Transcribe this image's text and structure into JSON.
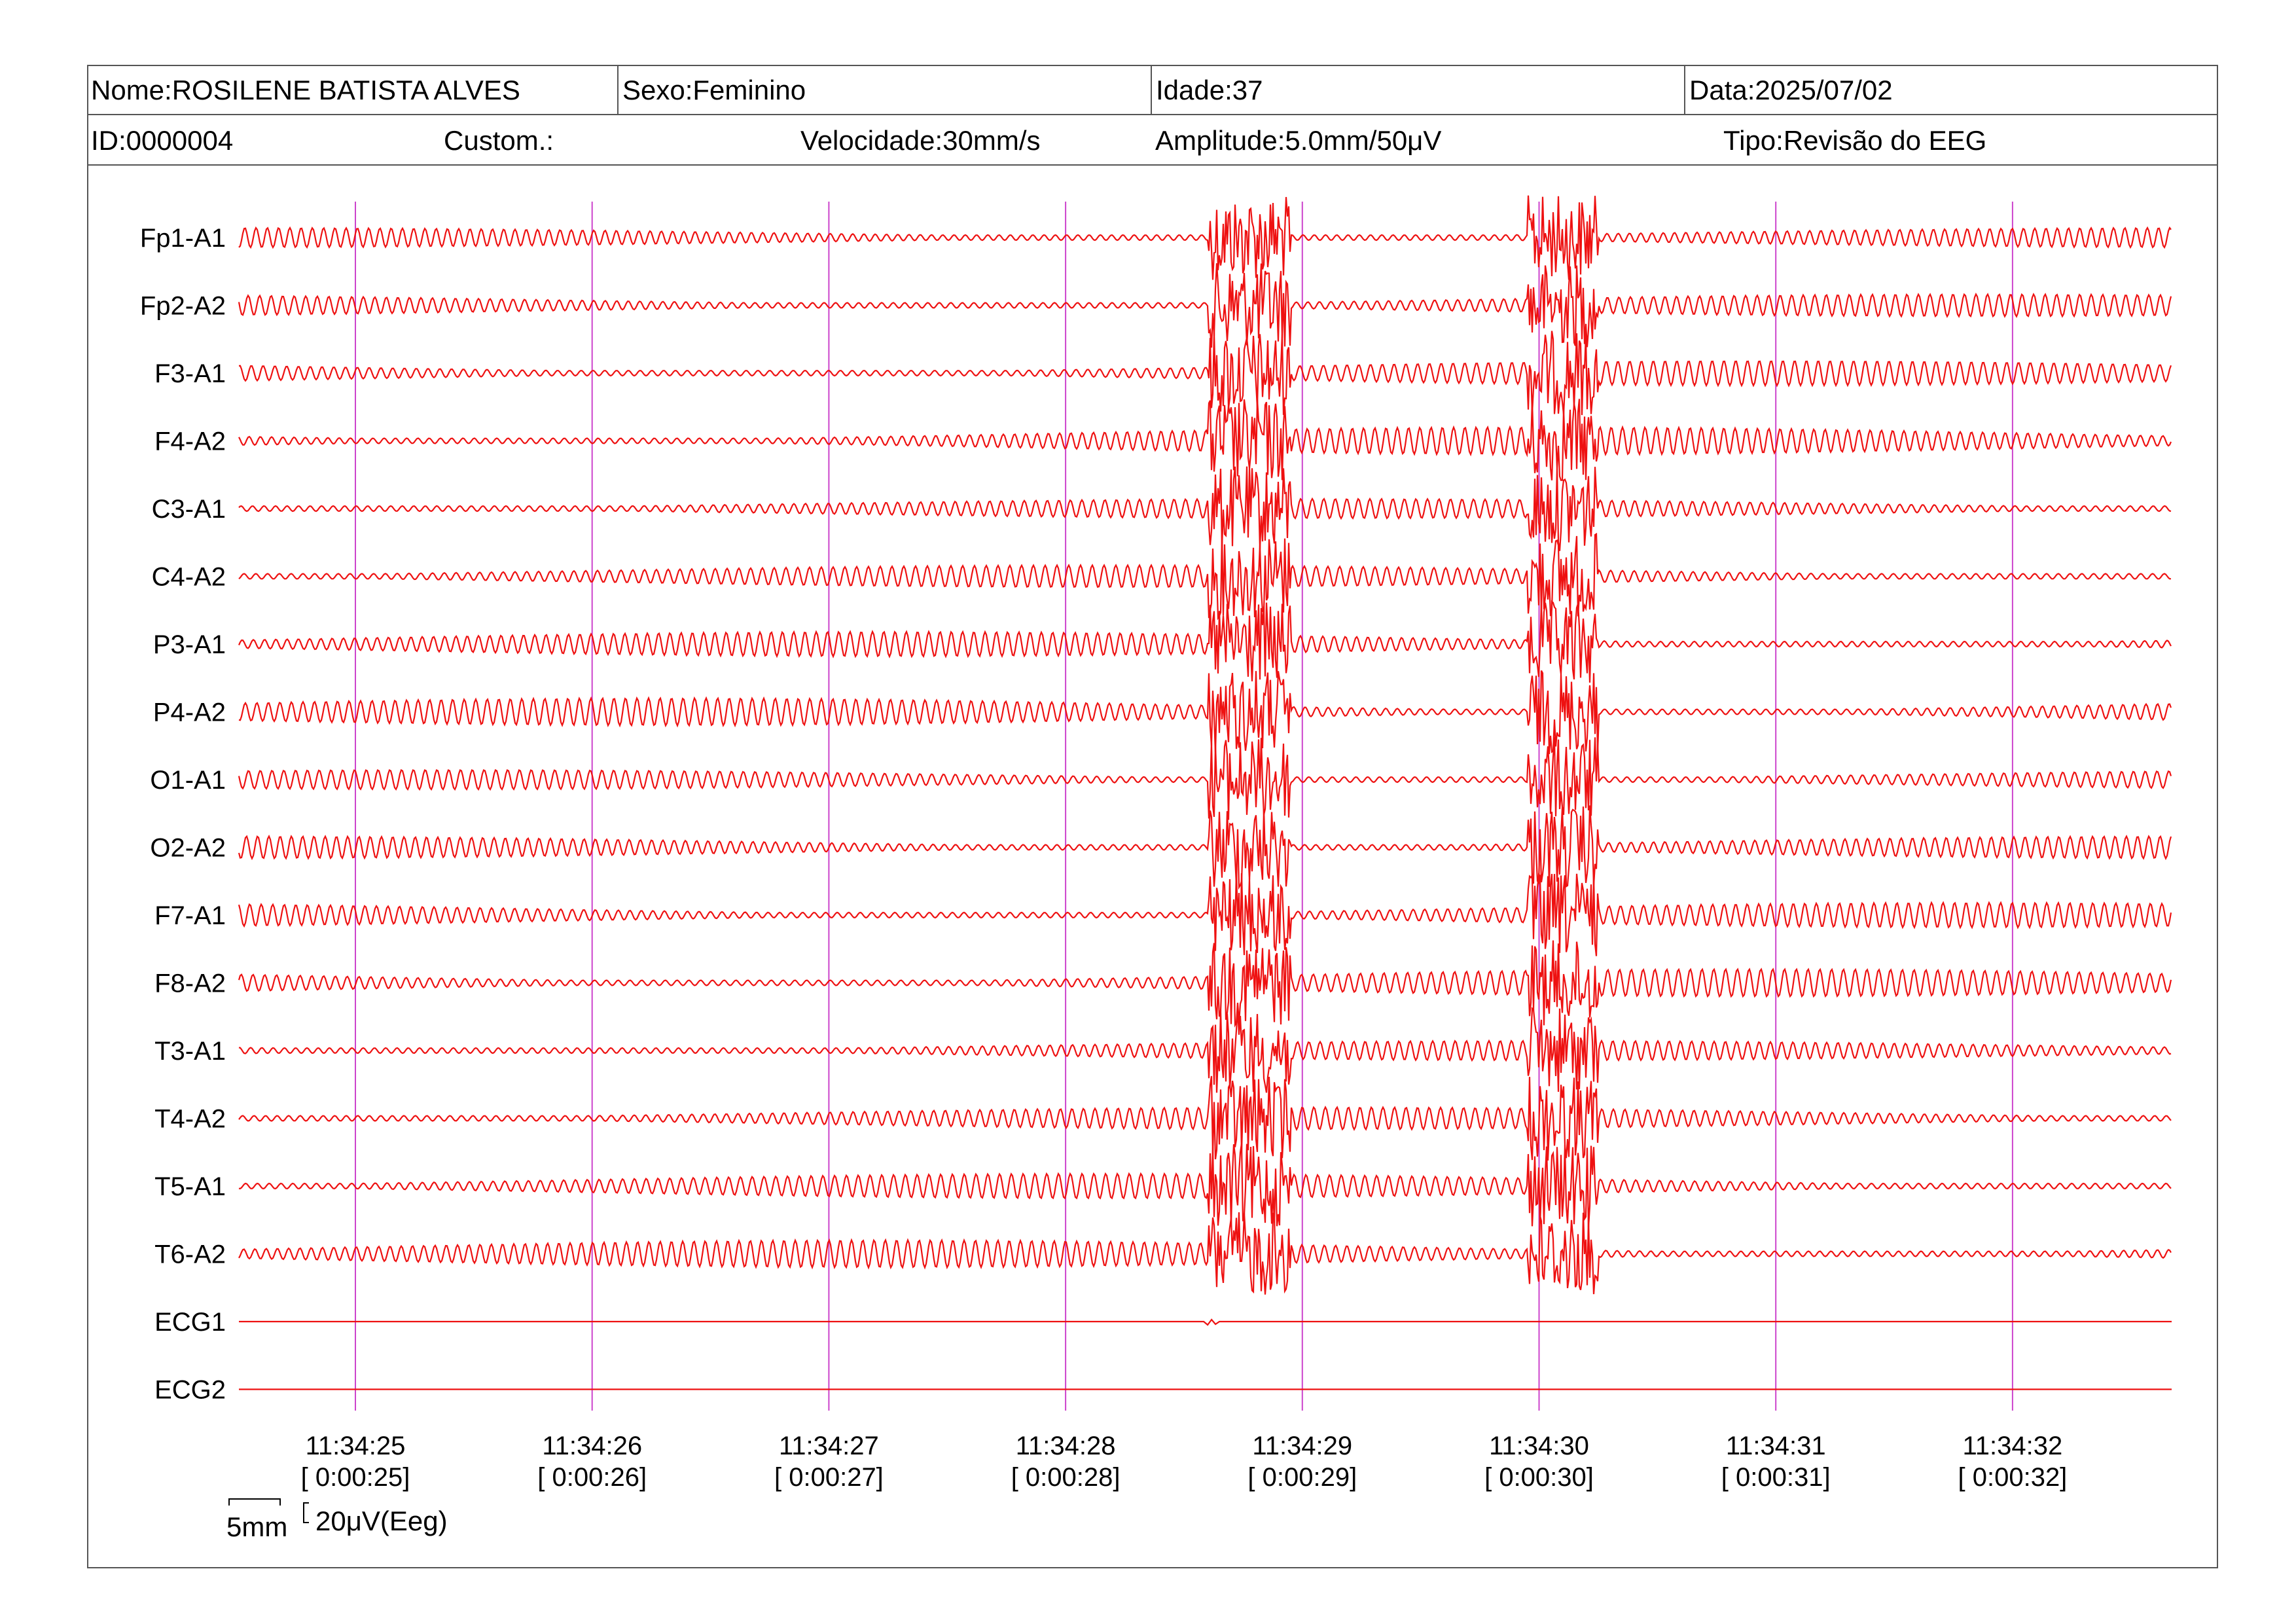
{
  "header": {
    "nome": "Nome:ROSILENE BATISTA ALVES",
    "sexo": "Sexo:Feminino",
    "idade": "Idade:37",
    "data": "Data:2025/07/02",
    "id": "ID:0000004",
    "custom": "Custom.:",
    "velocidade": "Velocidade:30mm/s",
    "amplitude": "Amplitude:5.0mm/50μV",
    "tipo": "Tipo:Revisão do EEG"
  },
  "scale": {
    "time_label": "5mm",
    "amp_label": "20μV(Eeg)"
  },
  "chart_data": {
    "type": "line",
    "title": "",
    "channels": [
      "Fp1-A1",
      "Fp2-A2",
      "F3-A1",
      "F4-A2",
      "C3-A1",
      "C4-A2",
      "P3-A1",
      "P4-A2",
      "O1-A1",
      "O2-A2",
      "F7-A1",
      "F8-A2",
      "T3-A1",
      "T4-A2",
      "T5-A1",
      "T6-A2",
      "ECG1",
      "ECG2"
    ],
    "time_ticks": [
      "11:34:25",
      "11:34:26",
      "11:34:27",
      "11:34:28",
      "11:34:29",
      "11:34:30",
      "11:34:31",
      "11:34:32"
    ],
    "elapsed_ticks": [
      "[ 0:00:25]",
      "[ 0:00:26]",
      "[ 0:00:27]",
      "[ 0:00:28]",
      "[ 0:00:29]",
      "[ 0:00:30]",
      "[ 0:00:31]",
      "[ 0:00:32]"
    ],
    "x_range_seconds": [
      24.5,
      32.65
    ],
    "artifact_bursts_seconds": [
      [
        28.6,
        28.95
      ],
      [
        29.95,
        30.25
      ]
    ],
    "grid": "vertical lines each second",
    "trace_color": "#ee1111",
    "grid_color": "#cc44cc"
  }
}
